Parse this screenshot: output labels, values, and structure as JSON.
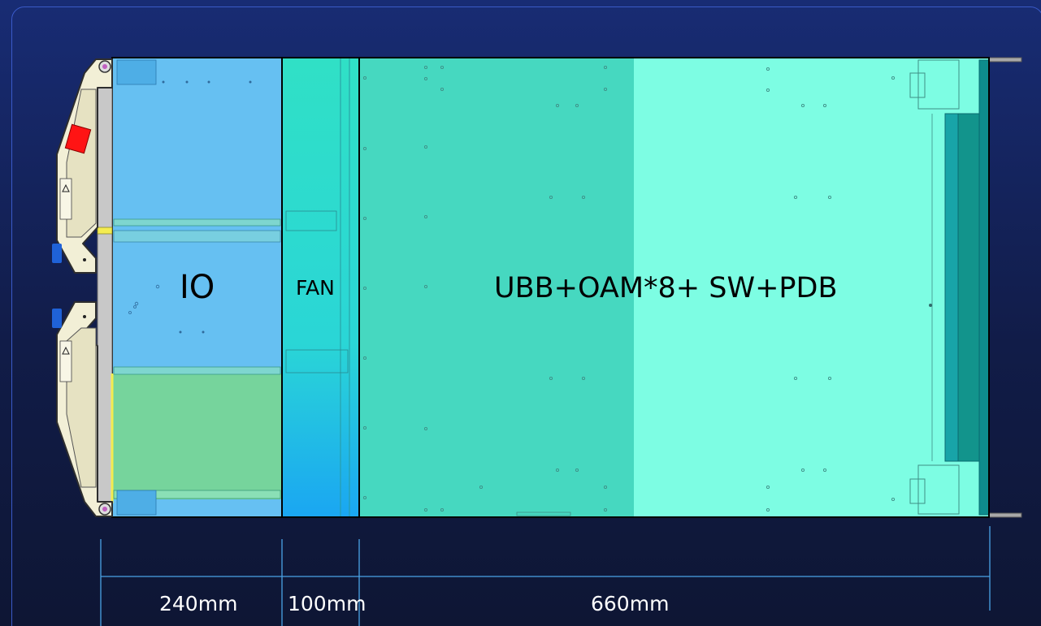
{
  "labels": {
    "io": "IO",
    "fan": "FAN",
    "main": "UBB+OAM*8+ SW+PDB"
  },
  "dimensions": {
    "io_width": "240mm",
    "fan_width": "100mm",
    "main_width": "660mm"
  },
  "colors": {
    "background": "#13205a",
    "io_zone": "#66bff0",
    "io_green_zone": "#72d39c",
    "fan_zone": "#2fe0c8",
    "ubb_zone_left": "#46d8c0",
    "ubb_zone_right": "#7dfde3",
    "dimension_line": "#4aa3e6",
    "handle_red": "#ff1414",
    "handle_blue": "#1f62d8"
  }
}
